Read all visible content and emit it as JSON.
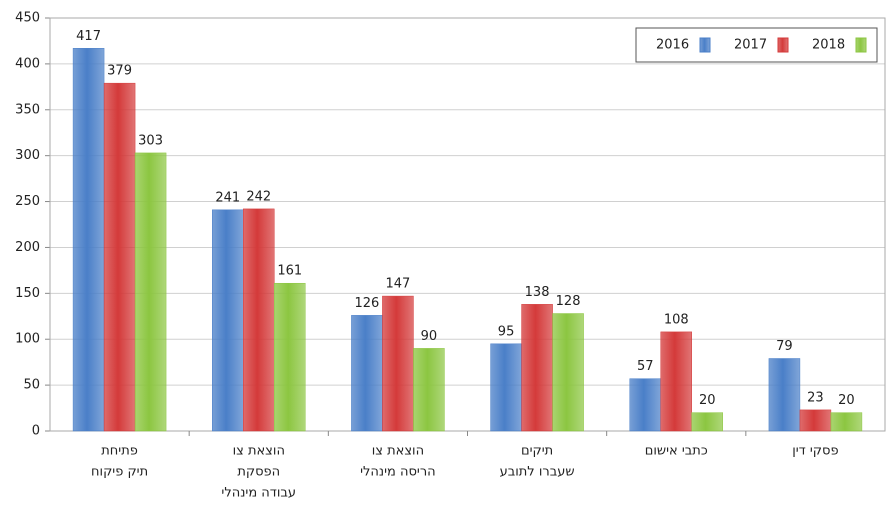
{
  "chart_data": {
    "type": "bar",
    "categories": [
      [
        "פתיחת",
        "תיק פיקוח"
      ],
      [
        "הוצאת צו",
        "הפסקת",
        "עבודה מינהלי"
      ],
      [
        "הוצאת צו",
        "הריסה מינהלי"
      ],
      [
        "תיקים",
        "שעברו לתובע"
      ],
      [
        "כתבי אישום"
      ],
      [
        "פסקי דין"
      ]
    ],
    "series": [
      {
        "name": "2016",
        "color": "#4a7fc8",
        "values": [
          417,
          241,
          126,
          95,
          57,
          79
        ]
      },
      {
        "name": "2017",
        "color": "#d43a3a",
        "values": [
          379,
          242,
          147,
          138,
          108,
          23
        ]
      },
      {
        "name": "2018",
        "color": "#8cc641",
        "values": [
          303,
          161,
          90,
          128,
          20,
          20
        ]
      }
    ],
    "ylim": [
      0,
      450
    ],
    "yticks": [
      0,
      50,
      100,
      150,
      200,
      250,
      300,
      350,
      400,
      450
    ],
    "grid": true,
    "legend": "top-right"
  }
}
